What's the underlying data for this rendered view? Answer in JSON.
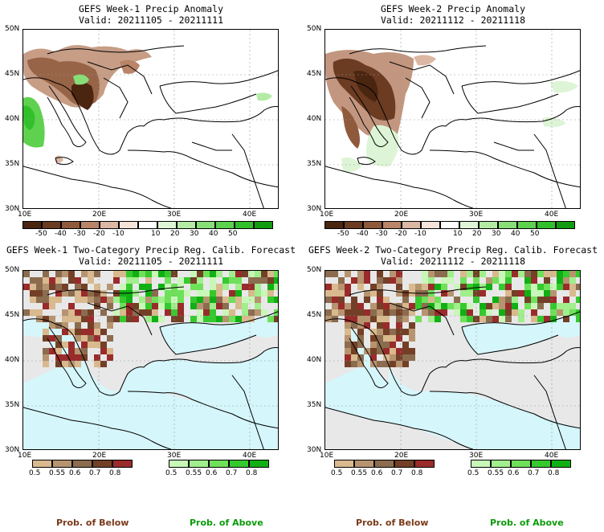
{
  "panels": [
    {
      "title1": "GEFS Week-1 Precip Anomaly",
      "title2": "Valid: 20211105 - 20211111"
    },
    {
      "title1": "GEFS Week-2 Precip Anomaly",
      "title2": "Valid: 20211112 - 20211118"
    },
    {
      "title1": "GEFS Week-1 Two-Category Precip Reg. Calib. Forecast",
      "title2": "Valid: 20211105 - 20211111"
    },
    {
      "title1": "GEFS Week-2 Two-Category Precip Reg. Calib. Forecast",
      "title2": "Valid: 20211112 - 20211118"
    }
  ],
  "lat_labels": [
    "50N",
    "45N",
    "40N",
    "35N",
    "30N"
  ],
  "lon_labels": [
    "10E",
    "20E",
    "30E",
    "40E"
  ],
  "anomaly_colorbar": {
    "labels": [
      "-50",
      "-40",
      "-30",
      "-20",
      "-10",
      "10",
      "20",
      "30",
      "40",
      "50"
    ],
    "colors": [
      "#4a2510",
      "#6b3b22",
      "#8f5a3c",
      "#b98468",
      "#dcb7a3",
      "#f4e3d8",
      "#ffffff",
      "#ddf5d6",
      "#b3eba5",
      "#88df78",
      "#5ed24e",
      "#32c02a",
      "#129b10"
    ]
  },
  "prob_colorbar": {
    "below_labels": [
      "0.5",
      "0.55",
      "0.6",
      "0.7",
      "0.8"
    ],
    "above_labels": [
      "0.5",
      "0.55",
      "0.6",
      "0.7",
      "0.8"
    ],
    "below_colors": [
      "#d9b98e",
      "#b79470",
      "#8b6c4e",
      "#734027",
      "#992b2b"
    ],
    "above_colors": [
      "#c8f7b8",
      "#a0ee8c",
      "#6fe05a",
      "#36c92e",
      "#10b014"
    ]
  },
  "footer": {
    "left_below": "Prob. of Below",
    "left_above": "Prob. of Above",
    "right_below": "Prob. of Below",
    "right_above": "Prob. of Above",
    "below_color": "#7a3a1a",
    "above_color": "#0b9b0b"
  },
  "colors": {
    "sea": "#d5f6fb",
    "land_masked": "#e8e8e8"
  }
}
